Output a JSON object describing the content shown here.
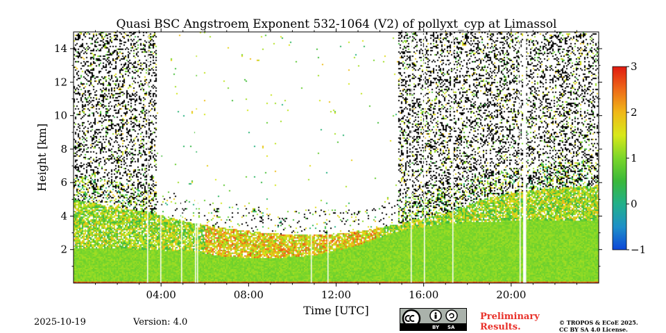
{
  "figure": {
    "date": "2025-10-19",
    "version": "Version: 4.0",
    "preliminary_line1": "Preliminary",
    "preliminary_line2": "Results.",
    "copyright_line1": "© TROPOS & ECoE 2025.",
    "copyright_line2": "CC BY SA 4.0 License.",
    "license_badge": {
      "by": "BY",
      "sa": "SA",
      "cc_icon": "cc-icon",
      "by_icon": "attribution-icon",
      "sa_icon": "share-alike-icon"
    }
  },
  "chart_data": {
    "type": "heatmap",
    "title": "Quasi BSC Angstroem Exponent 532-1064 (V2) of pollyxt_cyp at Limassol",
    "xlabel": "Time [UTC]",
    "ylabel": "Height [km]",
    "xlim": [
      0,
      24
    ],
    "ylim": [
      0,
      15
    ],
    "x_tick_labels": [
      "04:00",
      "08:00",
      "12:00",
      "16:00",
      "20:00"
    ],
    "x_tick_values": [
      4,
      8,
      12,
      16,
      20
    ],
    "y_tick_labels": [
      "2",
      "4",
      "6",
      "8",
      "10",
      "12",
      "14"
    ],
    "y_tick_values": [
      2,
      4,
      6,
      8,
      10,
      12,
      14
    ],
    "colorbar": {
      "range": [
        -1,
        3
      ],
      "tick_labels": [
        "3",
        "2",
        "1",
        "0",
        "−1"
      ],
      "tick_values": [
        3,
        2,
        1,
        0,
        -1
      ],
      "colormap_stops": [
        "#0d47d8",
        "#1e90c8",
        "#22b08a",
        "#3ab83a",
        "#7ad62a",
        "#d8e81a",
        "#f0b818",
        "#ee6a18",
        "#e01a10"
      ]
    },
    "layer_profile": {
      "description": "boundary layer top height (km) vs time (h)",
      "time_h": [
        0,
        2,
        4,
        5.5,
        7,
        9,
        11,
        13,
        14.5,
        15.5,
        17,
        19,
        21,
        24
      ],
      "aerosol_top_km": [
        5.0,
        4.6,
        4.1,
        3.6,
        3.3,
        3.0,
        2.9,
        3.1,
        3.5,
        3.8,
        4.2,
        5.2,
        5.6,
        5.9
      ],
      "dense_layer_top_km": [
        2.1,
        2.1,
        2.0,
        1.9,
        1.6,
        1.5,
        1.7,
        2.3,
        3.0,
        3.3,
        3.6,
        3.7,
        3.8,
        3.8
      ]
    },
    "data_gaps_h": [
      3.35,
      3.95,
      4.9,
      5.55,
      5.65,
      10.85,
      11.6,
      15.4,
      16.0,
      17.3,
      20.4,
      20.55,
      20.65
    ]
  }
}
